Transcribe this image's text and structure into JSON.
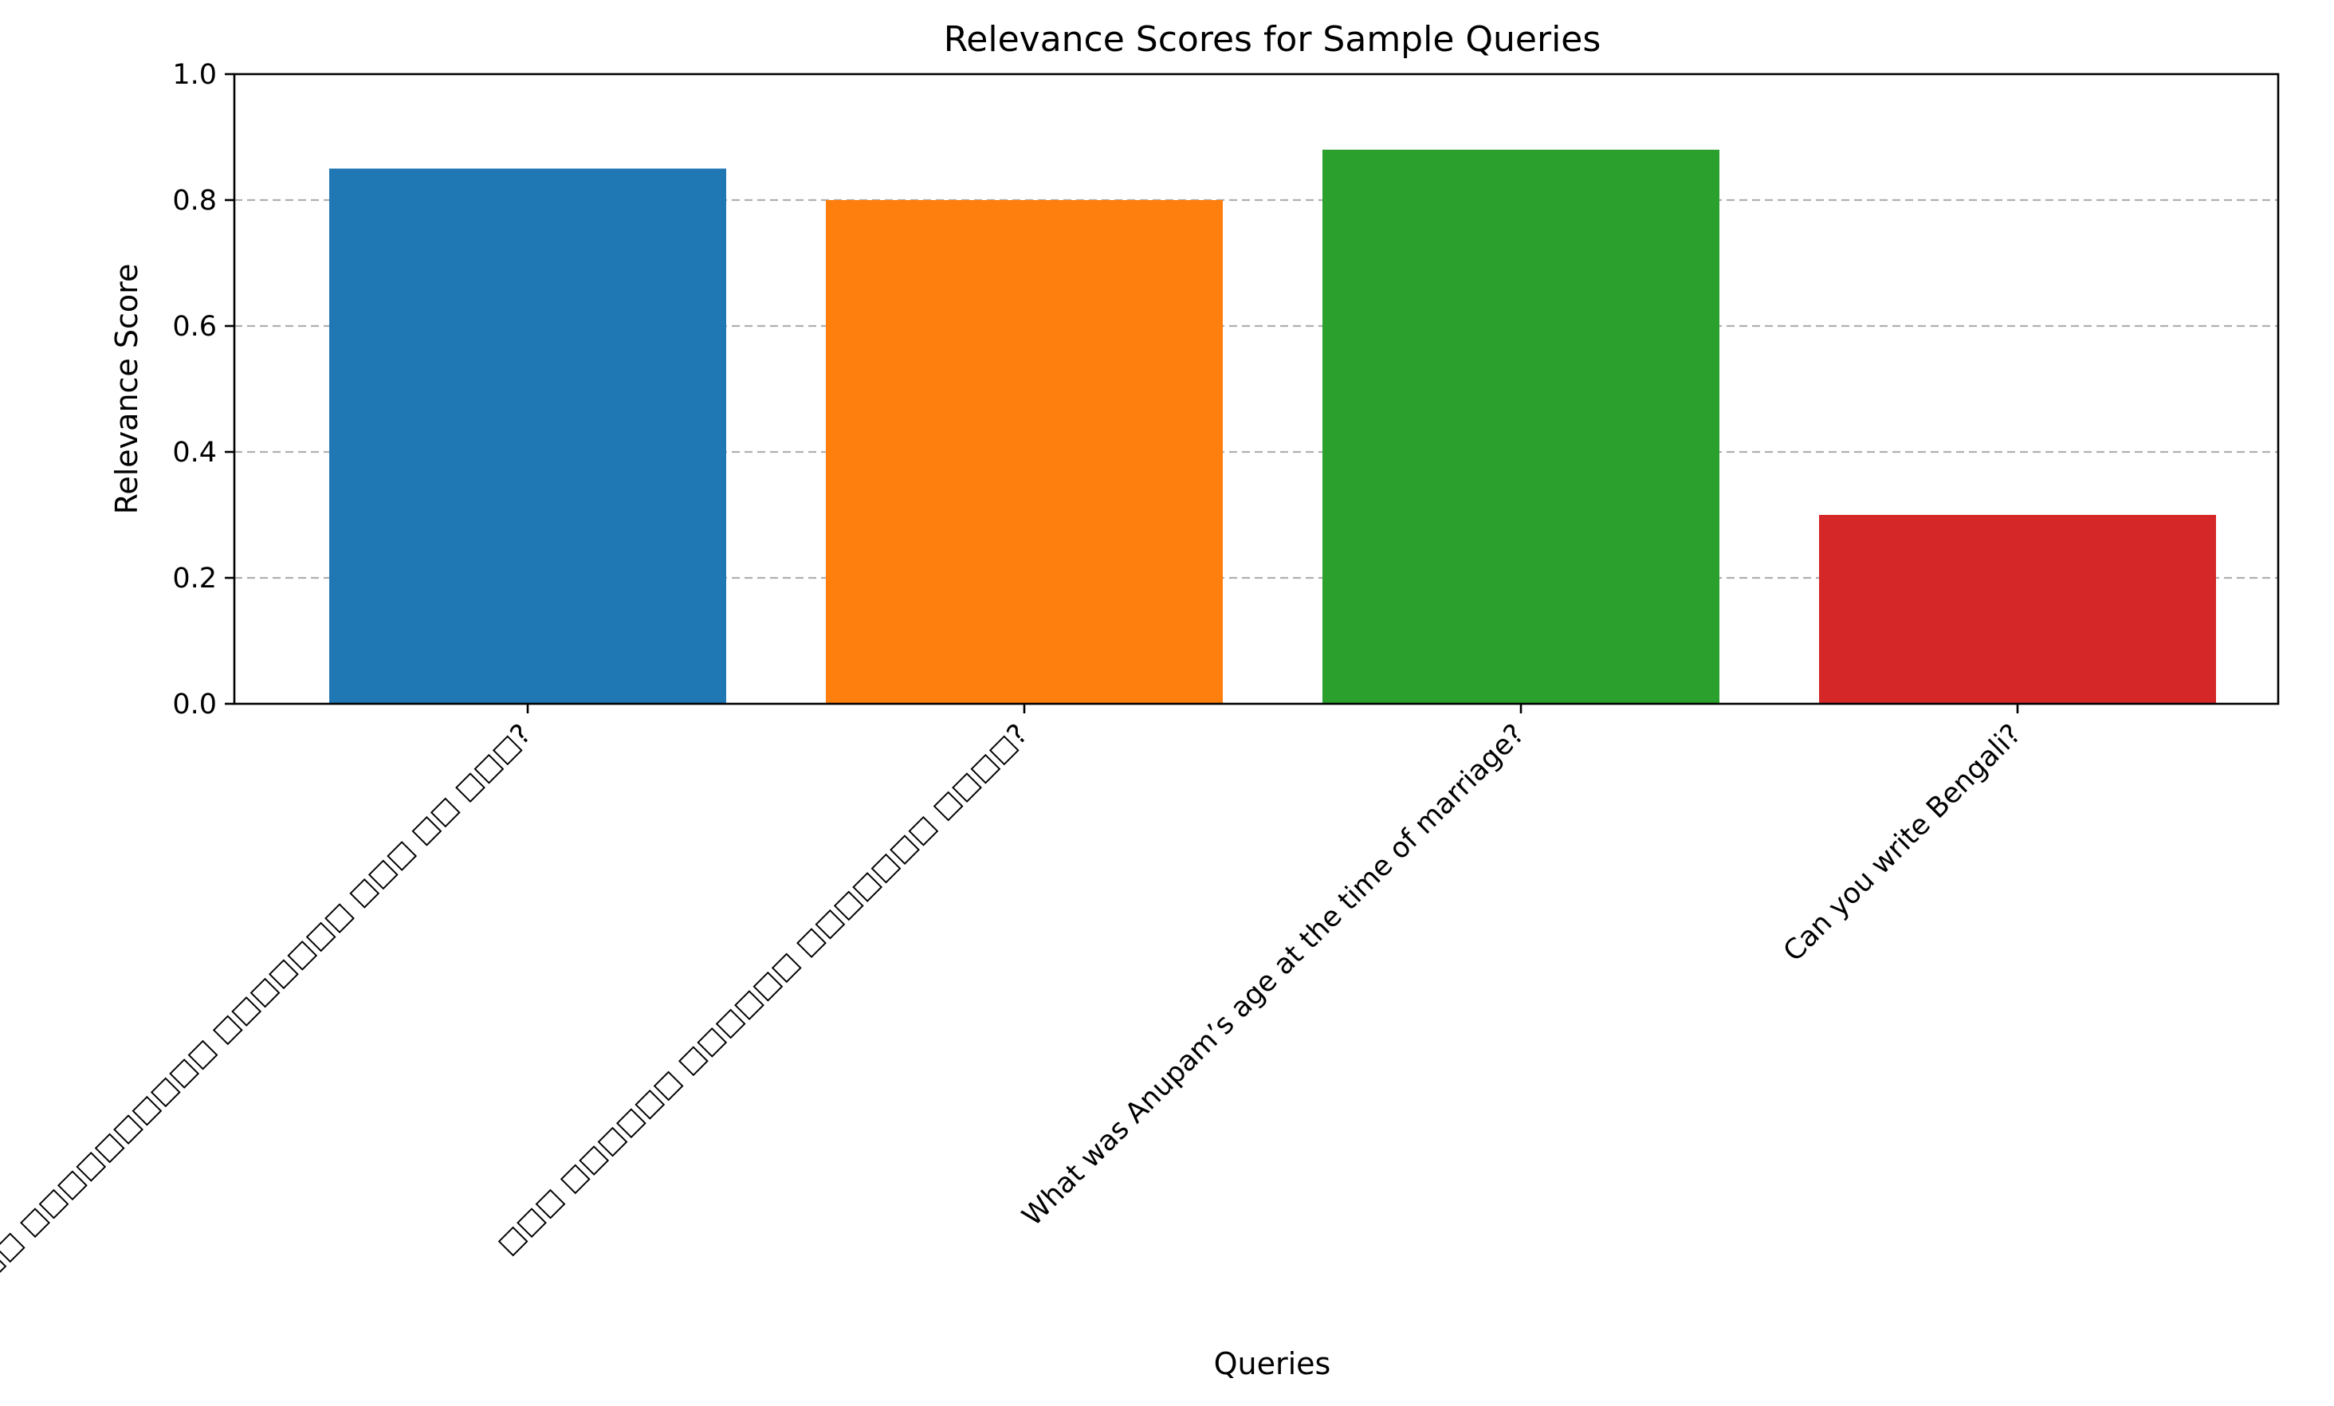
{
  "chart_data": {
    "type": "bar",
    "title": "Relevance Scores for Sample Queries",
    "xlabel": "Queries",
    "ylabel": "Relevance Score",
    "ylim": [
      0,
      1.0
    ],
    "yticks": [
      "0.0",
      "0.2",
      "0.4",
      "0.6",
      "0.8",
      "1.0"
    ],
    "grid": "y-dashed",
    "categories": [
      "□□□□□□ □□□□ □□□□□□□□□□ □□□□□□□ □□□ □□ □□□?",
      "□□□ □□□□□□ □□□□□□ □□□□□□□ □□□□?",
      "What was Anupam’s age at the time of marriage?",
      "Can you write Bengali?"
    ],
    "values": [
      0.85,
      0.8,
      0.88,
      0.3
    ],
    "colors": [
      "#1f77b4",
      "#ff7f0e",
      "#2ca02c",
      "#d62728"
    ]
  }
}
